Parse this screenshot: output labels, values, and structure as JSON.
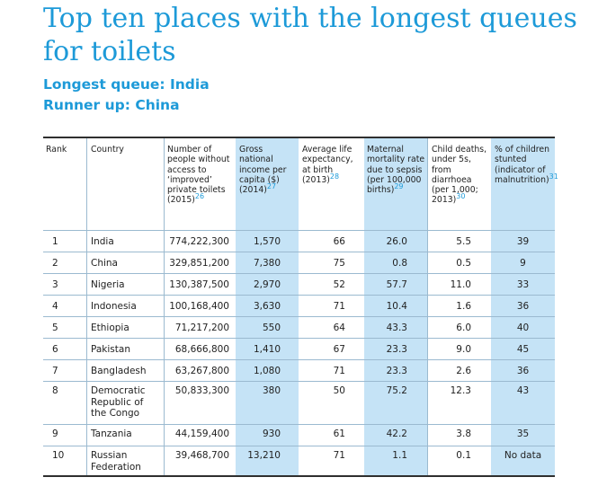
{
  "title": "Top ten places with the longest queues for toilets",
  "subtitle1": "Longest queue: India",
  "subtitle2": "Runner up: China",
  "table": {
    "headers": {
      "rank": "Rank",
      "country": "Country",
      "people": "Number of people without access to ‘improved’ private toilets (2015)",
      "people_ref": "26",
      "gni": "Gross national income per capita ($) (2014)",
      "gni_ref": "27",
      "life": "Average life expectancy, at birth (2013)",
      "life_ref": "28",
      "maternal": "Maternal mortality rate due to sepsis (per 100,000 births)",
      "maternal_ref": "29",
      "child": "Child deaths, under 5s, from diarrhoea (per 1,000; 2013)",
      "child_ref": "30",
      "stunted": "% of children stunted (indicator of malnutrition)",
      "stunted_ref": "31"
    },
    "rows": [
      {
        "rank": "1",
        "country": "India",
        "people": "774,222,300",
        "gni": "1,570",
        "life": "66",
        "maternal": "26.0",
        "child": "5.5",
        "stunted": "39"
      },
      {
        "rank": "2",
        "country": "China",
        "people": "329,851,200",
        "gni": "7,380",
        "life": "75",
        "maternal": "0.8",
        "child": "0.5",
        "stunted": "9"
      },
      {
        "rank": "3",
        "country": "Nigeria",
        "people": "130,387,500",
        "gni": "2,970",
        "life": "52",
        "maternal": "57.7",
        "child": "11.0",
        "stunted": "33"
      },
      {
        "rank": "4",
        "country": "Indonesia",
        "people": "100,168,400",
        "gni": "3,630",
        "life": "71",
        "maternal": "10.4",
        "child": "1.6",
        "stunted": "36"
      },
      {
        "rank": "5",
        "country": "Ethiopia",
        "people": "71,217,200",
        "gni": "550",
        "life": "64",
        "maternal": "43.3",
        "child": "6.0",
        "stunted": "40"
      },
      {
        "rank": "6",
        "country": "Pakistan",
        "people": "68,666,800",
        "gni": "1,410",
        "life": "67",
        "maternal": "23.3",
        "child": "9.0",
        "stunted": "45"
      },
      {
        "rank": "7",
        "country": "Bangladesh",
        "people": "63,267,800",
        "gni": "1,080",
        "life": "71",
        "maternal": "23.3",
        "child": "2.6",
        "stunted": "36"
      },
      {
        "rank": "8",
        "country": "Democratic Republic of the Congo",
        "people": "50,833,300",
        "gni": "380",
        "life": "50",
        "maternal": "75.2",
        "child": "12.3",
        "stunted": "43"
      },
      {
        "rank": "9",
        "country": "Tanzania",
        "people": "44,159,400",
        "gni": "930",
        "life": "61",
        "maternal": "42.2",
        "child": "3.8",
        "stunted": "35"
      },
      {
        "rank": "10",
        "country": "Russian Federation",
        "people": "39,468,700",
        "gni": "13,210",
        "life": "71",
        "maternal": "1.1",
        "child": "0.1",
        "stunted": "No data"
      }
    ]
  }
}
